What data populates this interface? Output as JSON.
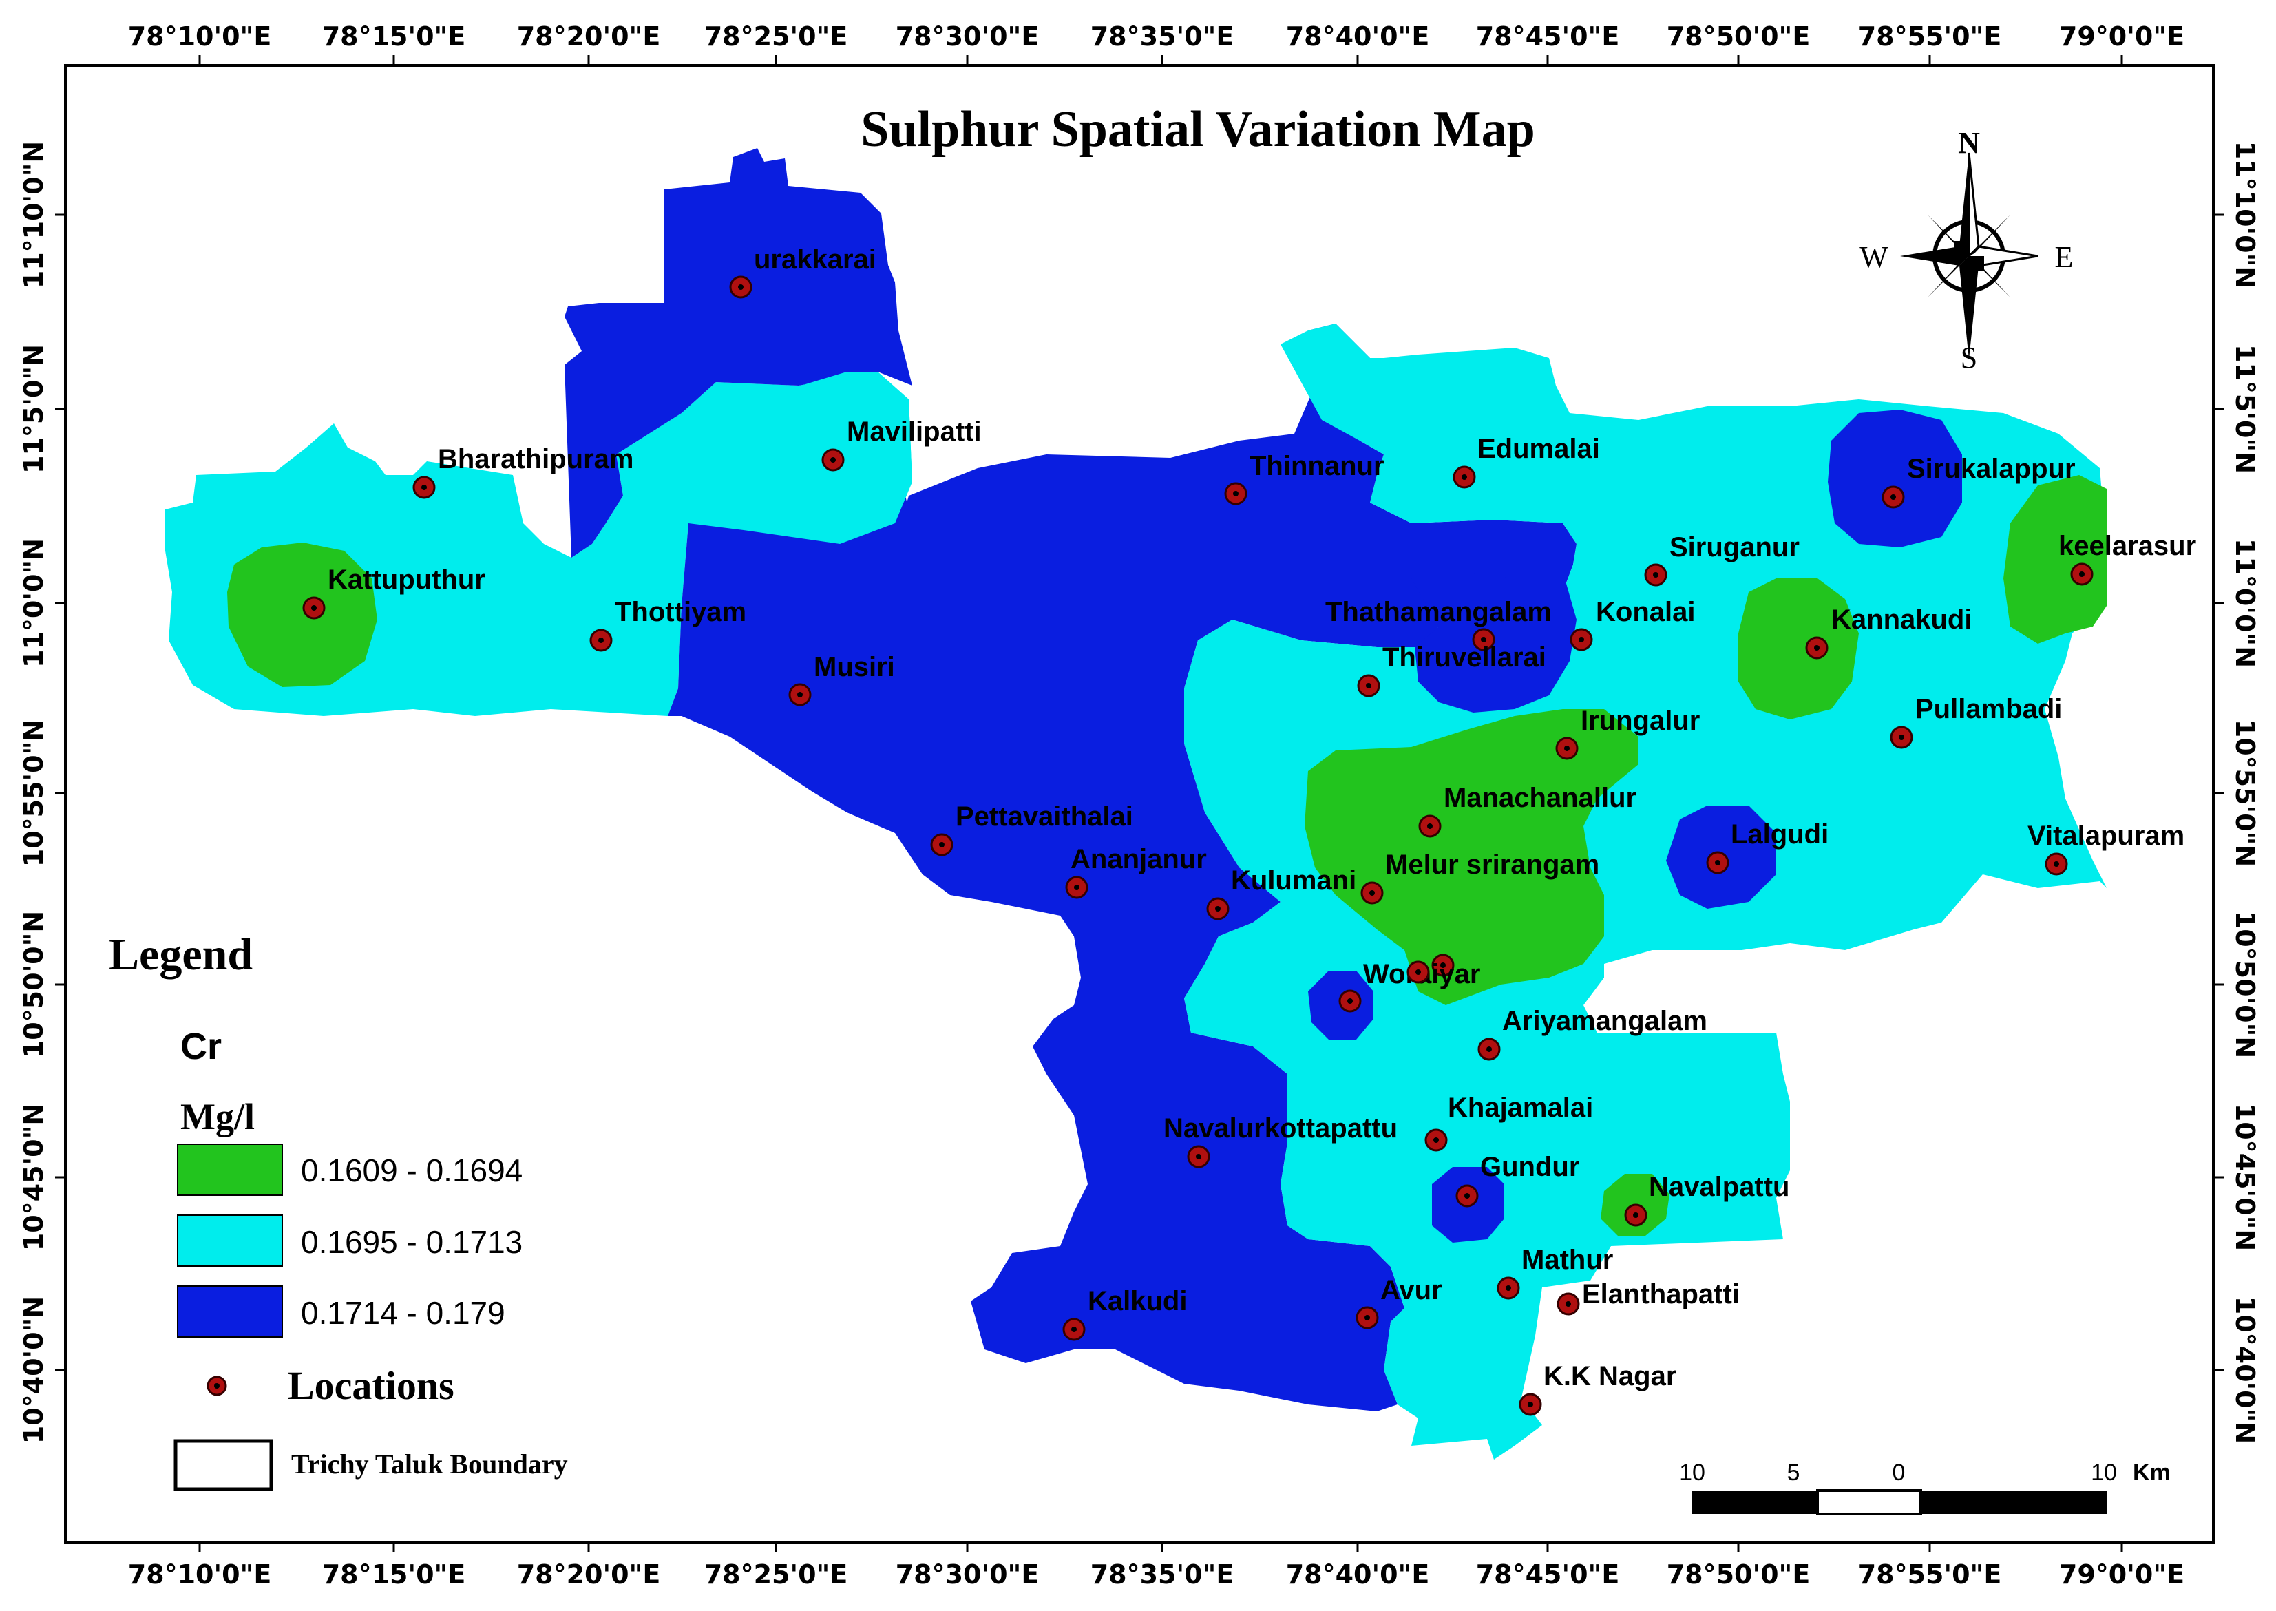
{
  "title": "Sulphur Spatial Variation Map",
  "graticule": {
    "longitudes": [
      "78°10'0\"E",
      "78°15'0\"E",
      "78°20'0\"E",
      "78°25'0\"E",
      "78°30'0\"E",
      "78°35'0\"E",
      "78°40'0\"E",
      "78°45'0\"E",
      "78°50'0\"E",
      "78°55'0\"E",
      "79°0'0\"E"
    ],
    "latitudes": [
      "11°10'0\"N",
      "11°5'0\"N",
      "11°0'0\"N",
      "10°55'0\"N",
      "10°50'0\"N",
      "10°45'0\"N",
      "10°40'0\"N"
    ]
  },
  "compass": {
    "n": "N",
    "s": "S",
    "e": "E",
    "w": "W"
  },
  "legend": {
    "heading": "Legend",
    "parameter": "Cr",
    "unit": "Mg/l",
    "classes": [
      {
        "range": "0.1609 - 0.1694",
        "color": "#22c41e"
      },
      {
        "range": "0.1695 - 0.1713",
        "color": "#00eded"
      },
      {
        "range": "0.1714 - 0.179",
        "color": "#0a1ee0"
      }
    ],
    "locations_label": "Locations",
    "boundary_label": "Trichy Taluk Boundary"
  },
  "scale_bar": {
    "ticks": [
      "10",
      "5",
      "0",
      "10"
    ],
    "unit": "Km"
  },
  "locations": [
    "urakkarai",
    "Mavilipatti",
    "Bharathipuram",
    "Thinnanur",
    "Edumalai",
    "Sirukalappur",
    "keelarasur",
    "Siruganur",
    "Kattuputhur",
    "Thottiyam",
    "Thathamangalam",
    "Konalai",
    "Kannakudi",
    "Musiri",
    "Thiruvellarai",
    "Pullambadi",
    "Irungalur",
    "Manachanallur",
    "Lalgudi",
    "Vitalapuram",
    "Pettavaithalai",
    "Ananjanur",
    "Kulumani",
    "Melur srirangam",
    "Woraiyar",
    "Ariyamangalam",
    "Navalurkottapattu",
    "Khajamalai",
    "Gundur",
    "Navalpattu",
    "Mathur",
    "Elanthapatti",
    "Kalkudi",
    "Avur",
    "K.K Nagar"
  ]
}
